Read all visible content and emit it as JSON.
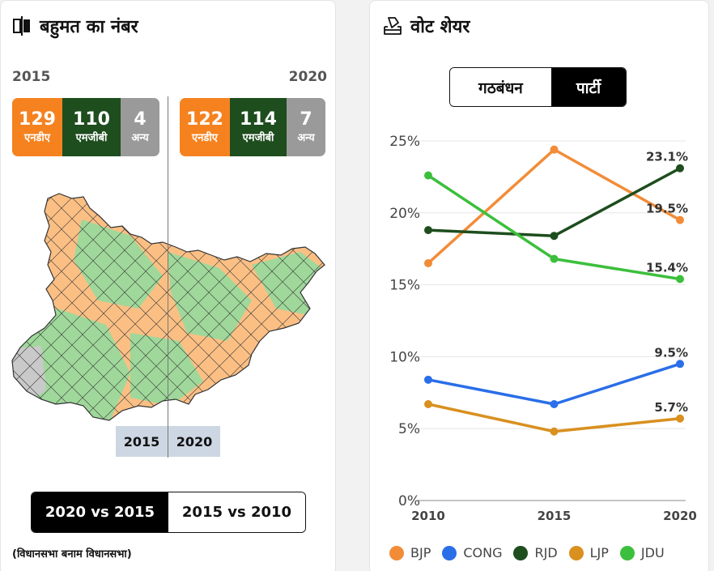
{
  "left_panel": {
    "title": "बहुमत का नंबर",
    "year_left": "2015",
    "year_right": "2020",
    "seats_2015": {
      "nda": "129",
      "mgb": "110",
      "other": "4"
    },
    "seats_2020": {
      "nda": "122",
      "mgb": "114",
      "other": "7"
    },
    "labels": {
      "nda": "एनडीए",
      "mgb": "एमजीबी",
      "other": "अन्य"
    },
    "map_year_left": "2015",
    "map_year_right": "2020",
    "compare_toggle": {
      "active": "2020 vs 2015",
      "inactive": "2015 vs 2010"
    },
    "note": "(विधानसभा बनाम विधानसभा)"
  },
  "right_panel": {
    "title": "वोट शेयर",
    "toggle": {
      "alliance": "गठबंधन",
      "party": "पार्टी"
    }
  },
  "colors": {
    "BJP": "#f28c38",
    "CONG": "#2a6ee8",
    "RJD": "#1e4d1e",
    "LJP": "#d9901f",
    "JDU": "#3cbf3c",
    "nda": "#f5821f",
    "mgb": "#1e4d1e",
    "other": "#9a9a9a",
    "map_nda": "#fbbf84",
    "map_mgb": "#9fd89a",
    "map_other": "#c9c9c9"
  },
  "chart_data": {
    "type": "line",
    "title": "वोट शेयर",
    "x": [
      "2010",
      "2015",
      "2020"
    ],
    "ylim": [
      0,
      25
    ],
    "yticks": [
      "0%",
      "5%",
      "10%",
      "15%",
      "20%",
      "25%"
    ],
    "series": [
      {
        "name": "BJP",
        "values": [
          16.5,
          24.4,
          19.5
        ],
        "end_label": "19.5%"
      },
      {
        "name": "CONG",
        "values": [
          8.4,
          6.7,
          9.5
        ],
        "end_label": "9.5%"
      },
      {
        "name": "RJD",
        "values": [
          18.8,
          18.4,
          23.1
        ],
        "end_label": "23.1%"
      },
      {
        "name": "LJP",
        "values": [
          6.7,
          4.8,
          5.7
        ],
        "end_label": "5.7%"
      },
      {
        "name": "JDU",
        "values": [
          22.6,
          16.8,
          15.4
        ],
        "end_label": "15.4%"
      }
    ],
    "legend": [
      "BJP",
      "CONG",
      "RJD",
      "LJP",
      "JDU"
    ]
  }
}
